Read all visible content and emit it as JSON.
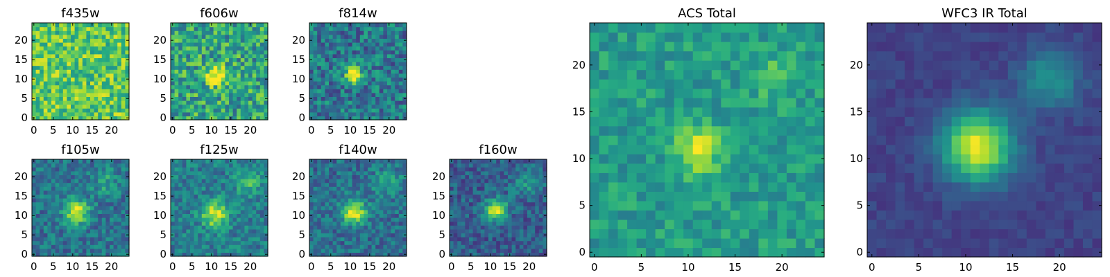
{
  "figure": {
    "background": "#ffffff",
    "colormap": "viridis"
  },
  "chart_data": [
    {
      "type": "heatmap",
      "title": "f435w",
      "grid_size": 25,
      "xlim": [
        0,
        25
      ],
      "ylim": [
        0,
        25
      ],
      "xticks": [
        0,
        5,
        10,
        15,
        20
      ],
      "yticks": [
        0,
        5,
        10,
        15,
        20
      ],
      "background_level": 0.74,
      "noise_amplitude": 0.22,
      "sources": []
    },
    {
      "type": "heatmap",
      "title": "f606w",
      "grid_size": 25,
      "xlim": [
        0,
        25
      ],
      "ylim": [
        0,
        25
      ],
      "xticks": [
        0,
        5,
        10,
        15,
        20
      ],
      "yticks": [
        0,
        5,
        10,
        15,
        20
      ],
      "background_level": 0.58,
      "noise_amplitude": 0.26,
      "sources": [
        {
          "x": 11.5,
          "y": 11.5,
          "amplitude": 0.5,
          "sigma": 1.8
        }
      ]
    },
    {
      "type": "heatmap",
      "title": "f814w",
      "grid_size": 25,
      "xlim": [
        0,
        25
      ],
      "ylim": [
        0,
        25
      ],
      "xticks": [
        0,
        5,
        10,
        15,
        20
      ],
      "yticks": [
        0,
        5,
        10,
        15,
        20
      ],
      "background_level": 0.4,
      "noise_amplitude": 0.22,
      "sources": [
        {
          "x": 11.5,
          "y": 11.5,
          "amplitude": 0.7,
          "sigma": 1.5
        }
      ]
    },
    {
      "type": "heatmap",
      "title": "f105w",
      "grid_size": 25,
      "xlim": [
        0,
        25
      ],
      "ylim": [
        0,
        25
      ],
      "xticks": [
        0,
        5,
        10,
        15,
        20
      ],
      "yticks": [
        0,
        5,
        10,
        15,
        20
      ],
      "background_level": 0.38,
      "noise_amplitude": 0.16,
      "sources": [
        {
          "x": 11.5,
          "y": 11.5,
          "amplitude": 0.6,
          "sigma": 2.2
        },
        {
          "x": 19,
          "y": 19,
          "amplitude": 0.2,
          "sigma": 2.5
        }
      ]
    },
    {
      "type": "heatmap",
      "title": "f125w",
      "grid_size": 25,
      "xlim": [
        0,
        25
      ],
      "ylim": [
        0,
        25
      ],
      "xticks": [
        0,
        5,
        10,
        15,
        20
      ],
      "yticks": [
        0,
        5,
        10,
        15,
        20
      ],
      "background_level": 0.42,
      "noise_amplitude": 0.16,
      "sources": [
        {
          "x": 11.5,
          "y": 11,
          "amplitude": 0.55,
          "sigma": 2.4
        },
        {
          "x": 20,
          "y": 19,
          "amplitude": 0.25,
          "sigma": 2.5
        }
      ]
    },
    {
      "type": "heatmap",
      "title": "f140w",
      "grid_size": 25,
      "xlim": [
        0,
        25
      ],
      "ylim": [
        0,
        25
      ],
      "xticks": [
        0,
        5,
        10,
        15,
        20
      ],
      "yticks": [
        0,
        5,
        10,
        15,
        20
      ],
      "background_level": 0.36,
      "noise_amplitude": 0.16,
      "sources": [
        {
          "x": 11.5,
          "y": 11.5,
          "amplitude": 0.6,
          "sigma": 2.2
        },
        {
          "x": 20,
          "y": 19,
          "amplitude": 0.25,
          "sigma": 2.5
        }
      ]
    },
    {
      "type": "heatmap",
      "title": "f160w",
      "grid_size": 25,
      "xlim": [
        0,
        25
      ],
      "ylim": [
        0,
        25
      ],
      "xticks": [
        0,
        5,
        10,
        15,
        20
      ],
      "yticks": [
        0,
        5,
        10,
        15,
        20
      ],
      "background_level": 0.3,
      "noise_amplitude": 0.15,
      "sources": [
        {
          "x": 12,
          "y": 12,
          "amplitude": 0.65,
          "sigma": 2.0
        },
        {
          "x": 20,
          "y": 19,
          "amplitude": 0.25,
          "sigma": 2.5
        }
      ]
    },
    {
      "type": "heatmap",
      "title": "ACS Total",
      "grid_size": 25,
      "xlim": [
        0,
        25
      ],
      "ylim": [
        0,
        25
      ],
      "xticks": [
        0,
        5,
        10,
        15,
        20
      ],
      "yticks": [
        0,
        5,
        10,
        15,
        20
      ],
      "background_level": 0.55,
      "noise_amplitude": 0.13,
      "sources": [
        {
          "x": 11.5,
          "y": 11.5,
          "amplitude": 0.45,
          "sigma": 1.6
        },
        {
          "x": 19.5,
          "y": 19,
          "amplitude": 0.15,
          "sigma": 1.8
        }
      ]
    },
    {
      "type": "heatmap",
      "title": "WFC3 IR Total",
      "grid_size": 25,
      "xlim": [
        0,
        25
      ],
      "ylim": [
        0,
        25
      ],
      "xticks": [
        0,
        5,
        10,
        15,
        20
      ],
      "yticks": [
        0,
        5,
        10,
        15,
        20
      ],
      "background_level": 0.2,
      "noise_amplitude": 0.05,
      "sources": [
        {
          "x": 11.8,
          "y": 11.8,
          "amplitude": 0.78,
          "sigma": 2.6
        },
        {
          "x": 19.5,
          "y": 19,
          "amplitude": 0.32,
          "sigma": 2.2
        }
      ]
    }
  ]
}
